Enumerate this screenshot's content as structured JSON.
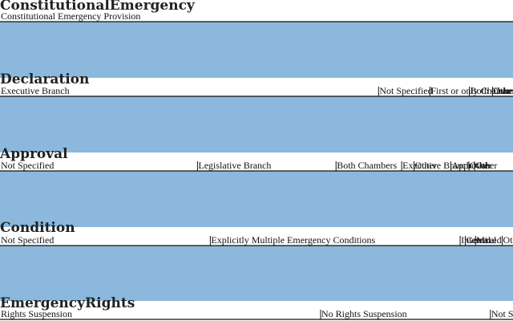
{
  "chart_data": {
    "type": "parallel-sets",
    "colors": {
      "ribbon": "#4a8ec7",
      "bar": "#8bb8dc",
      "rule": "#111111",
      "title": "#222222",
      "background": "#ffffff"
    },
    "dimensions": [
      {
        "title": "ConstitutionalEmergency",
        "categories": [
          {
            "label": "Constitutional Emergency Provision",
            "share": 1.0
          }
        ]
      },
      {
        "title": "Declaration",
        "categories": [
          {
            "label": "Executive Branch",
            "share": 0.738
          },
          {
            "label": "Not Specified",
            "share": 0.1
          },
          {
            "label": "First or only Chamber",
            "share": 0.077
          },
          {
            "label": "Both Chambers",
            "share": 0.045
          },
          {
            "label": "Other",
            "share": 0.04
          }
        ]
      },
      {
        "title": "Approval",
        "categories": [
          {
            "label": "Not Specified",
            "share": 0.385
          },
          {
            "label": "Legislative Branch",
            "share": 0.27
          },
          {
            "label": "Both Chambers",
            "share": 0.128
          },
          {
            "label": "Executive Branch",
            "share": 0.024
          },
          {
            "label": "Other",
            "share": 0.072
          },
          {
            "label": "Approval",
            "share": 0.035
          },
          {
            "label": "Other",
            "share": 0.011
          },
          {
            "label": "Other",
            "share": 0.075
          }
        ]
      },
      {
        "title": "Condition",
        "categories": [
          {
            "label": "Not Specified",
            "share": 0.41
          },
          {
            "label": "Explicitly Multiple Emergency Conditions",
            "share": 0.487
          },
          {
            "label": "Internal",
            "share": 0.01
          },
          {
            "label": "General",
            "share": 0.02
          },
          {
            "label": "Mixed",
            "share": 0.052
          },
          {
            "label": "Other",
            "share": 0.021
          }
        ]
      },
      {
        "title": "EmergencyRights",
        "categories": [
          {
            "label": "Rights Suspension",
            "share": 0.625
          },
          {
            "label": "No Rights Suspension",
            "share": 0.331
          },
          {
            "label": "Not Specified",
            "share": 0.044
          }
        ]
      }
    ]
  }
}
